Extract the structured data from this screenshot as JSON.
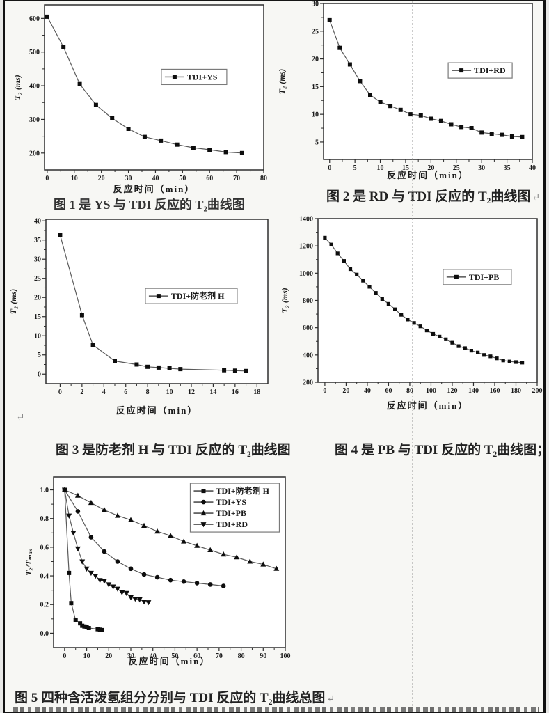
{
  "page": {
    "captions": {
      "fig1": "图 1 是 YS 与 TDI 反应的 T₂曲线图",
      "fig2": "图 2 是 RD 与 TDI 反应的 T₂曲线图",
      "fig3": "图 3 是防老剂 H 与 TDI 反应的 T₂曲线图",
      "fig4": "图 4 是 PB 与 TDI 反应的 T₂曲线图；",
      "fig5": "图 5 四种含活泼氢组分分别与 TDI 反应的 T₂曲线总图"
    },
    "marks": {
      "paragraph_return": "↵"
    },
    "colors": {
      "ink": "#1b1b1b",
      "frame": "#2e2e2e",
      "marker": "#0d0d0d",
      "line": "#5a5a5a",
      "paper": "#f7f7f4"
    }
  },
  "chart_data": [
    {
      "id": "fig1",
      "type": "line",
      "xlabel": "反应时间（min）",
      "ylabel": "T₂ (ms)",
      "xlim": [
        -1,
        80
      ],
      "ylim": [
        150,
        640
      ],
      "xticks": [
        0,
        10,
        20,
        30,
        40,
        50,
        60,
        70,
        80
      ],
      "yticks": [
        200,
        300,
        400,
        500,
        600
      ],
      "xdec": 0,
      "ydec": 0,
      "legend": {
        "fx": 0.533,
        "fy": 0.39
      },
      "grid": false,
      "series": [
        {
          "name": "TDI+YS",
          "marker": "square",
          "x": [
            0,
            6,
            12,
            18,
            24,
            30,
            36,
            42,
            48,
            54,
            60,
            66,
            72
          ],
          "y": [
            605,
            515,
            405,
            343,
            303,
            272,
            248,
            237,
            225,
            216,
            210,
            203,
            200
          ]
        }
      ]
    },
    {
      "id": "fig2",
      "type": "line",
      "xlabel": "反应时间（min）",
      "ylabel": "T₂ (ms)",
      "xlim": [
        -1.2,
        40
      ],
      "ylim": [
        1.85,
        30
      ],
      "xticks": [
        0,
        5,
        10,
        15,
        20,
        25,
        30,
        35,
        40
      ],
      "yticks": [
        5,
        10,
        15,
        20,
        25,
        30
      ],
      "xdec": 0,
      "ydec": 0,
      "legend": {
        "fx": 0.597,
        "fy": 0.38
      },
      "grid": false,
      "series": [
        {
          "name": "TDI+RD",
          "marker": "square",
          "x": [
            0,
            2,
            4,
            6,
            8,
            10,
            12,
            14,
            16,
            18,
            20,
            22,
            24,
            26,
            28,
            30,
            32,
            34,
            36,
            38
          ],
          "y": [
            27,
            22,
            19,
            16,
            13.5,
            12.2,
            11.5,
            10.8,
            10,
            9.8,
            9.2,
            8.8,
            8.2,
            7.7,
            7.5,
            6.7,
            6.5,
            6.3,
            6,
            5.9
          ]
        }
      ]
    },
    {
      "id": "fig3",
      "type": "line",
      "xlabel": "反应时间（min）",
      "ylabel": "T₂ (ms)",
      "xlim": [
        -1.3,
        19
      ],
      "ylim": [
        -2.5,
        40.4
      ],
      "xticks": [
        0,
        2,
        4,
        6,
        8,
        10,
        12,
        14,
        16,
        18
      ],
      "yticks": [
        0,
        5,
        10,
        15,
        20,
        25,
        30,
        35,
        40
      ],
      "xdec": 0,
      "ydec": 0,
      "legend": {
        "fx": 0.448,
        "fy": 0.42
      },
      "grid": false,
      "series": [
        {
          "name": "TDI+防老剂 H",
          "marker": "square",
          "x": [
            0,
            2,
            3,
            5,
            7,
            8,
            9,
            10,
            11,
            15,
            16,
            17
          ],
          "y": [
            36.3,
            15.4,
            7.6,
            3.4,
            2.5,
            1.9,
            1.7,
            1.5,
            1.3,
            1,
            0.9,
            0.8
          ]
        }
      ]
    },
    {
      "id": "fig4",
      "type": "line",
      "xlabel": "反应时间（min）",
      "ylabel": "T₂ (ms)",
      "xlim": [
        -6.5,
        200
      ],
      "ylim": [
        200,
        1400
      ],
      "xticks": [
        0,
        20,
        40,
        60,
        80,
        100,
        120,
        140,
        160,
        180,
        200
      ],
      "yticks": [
        200,
        400,
        600,
        800,
        1000,
        1200,
        1400
      ],
      "xdec": 0,
      "ydec": 0,
      "legend": {
        "fx": 0.571,
        "fy": 0.31
      },
      "grid": false,
      "series": [
        {
          "name": "TDI+PB",
          "marker": "square",
          "x": [
            0,
            6,
            12,
            18,
            24,
            30,
            36,
            42,
            48,
            54,
            60,
            66,
            72,
            78,
            84,
            90,
            96,
            102,
            108,
            114,
            120,
            126,
            132,
            138,
            144,
            150,
            156,
            162,
            168,
            174,
            180,
            186
          ],
          "y": [
            1260,
            1210,
            1145,
            1090,
            1030,
            990,
            945,
            900,
            855,
            810,
            775,
            735,
            695,
            660,
            635,
            610,
            580,
            555,
            535,
            515,
            490,
            465,
            450,
            432,
            418,
            400,
            390,
            375,
            360,
            352,
            348,
            344
          ]
        }
      ]
    },
    {
      "id": "fig5",
      "type": "line",
      "xlabel": "反应时间（min）",
      "ylabel": "T₂/Tₘₐₓ",
      "xlim": [
        -5,
        100
      ],
      "ylim": [
        -0.1,
        1.09
      ],
      "xticks": [
        0,
        10,
        20,
        30,
        40,
        50,
        60,
        70,
        80,
        90,
        100
      ],
      "yticks": [
        0,
        0.2,
        0.4,
        0.6,
        0.8,
        1.0
      ],
      "xdec": 0,
      "ydec": 1,
      "legend": {
        "fx": 0.59,
        "fy": 0.037
      },
      "grid": false,
      "series": [
        {
          "name": "TDI+防老剂 H",
          "marker": "square",
          "x": [
            0,
            2,
            3,
            5,
            7,
            8,
            9,
            10,
            11,
            15,
            16,
            17
          ],
          "y": [
            1,
            0.42,
            0.21,
            0.09,
            0.069,
            0.052,
            0.047,
            0.041,
            0.036,
            0.028,
            0.025,
            0.022
          ]
        },
        {
          "name": "TDI+YS",
          "marker": "circle",
          "x": [
            0,
            6,
            12,
            18,
            24,
            30,
            36,
            42,
            48,
            54,
            60,
            66,
            72
          ],
          "y": [
            1,
            0.85,
            0.67,
            0.57,
            0.5,
            0.45,
            0.41,
            0.39,
            0.37,
            0.36,
            0.35,
            0.34,
            0.33
          ]
        },
        {
          "name": "TDI+PB",
          "marker": "triangle-up",
          "x": [
            0,
            6,
            12,
            18,
            24,
            30,
            36,
            42,
            48,
            54,
            60,
            66,
            72,
            78,
            84,
            90,
            96
          ],
          "y": [
            1,
            0.96,
            0.91,
            0.86,
            0.82,
            0.79,
            0.75,
            0.71,
            0.68,
            0.64,
            0.61,
            0.58,
            0.55,
            0.53,
            0.5,
            0.48,
            0.45
          ]
        },
        {
          "name": "TDI+RD",
          "marker": "triangle-down",
          "x": [
            0,
            2,
            4,
            6,
            8,
            10,
            12,
            14,
            16,
            18,
            20,
            22,
            24,
            26,
            28,
            30,
            32,
            34,
            36,
            38
          ],
          "y": [
            1,
            0.82,
            0.7,
            0.59,
            0.5,
            0.45,
            0.42,
            0.4,
            0.37,
            0.365,
            0.34,
            0.325,
            0.31,
            0.285,
            0.28,
            0.25,
            0.24,
            0.235,
            0.22,
            0.215
          ]
        }
      ]
    }
  ]
}
